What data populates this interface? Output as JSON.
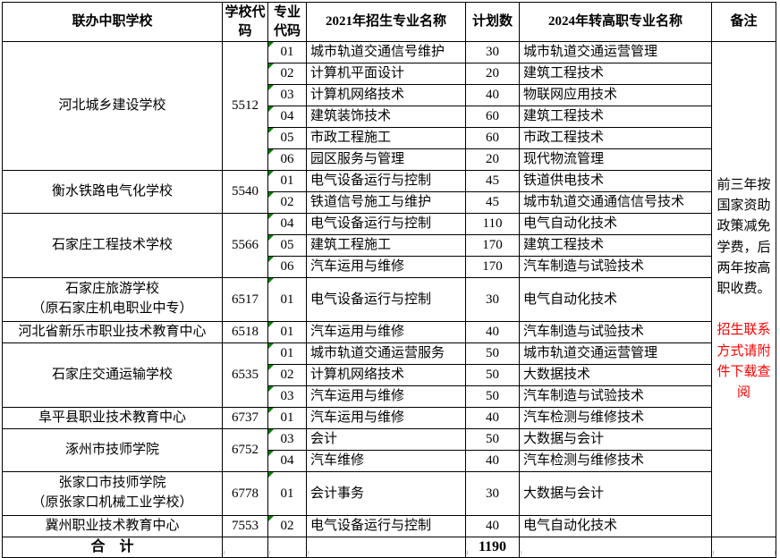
{
  "header": {
    "school": "联办中职学校",
    "school_code": "学校代码",
    "major_code": "专业代码",
    "major_2021": "2021年招生专业名称",
    "plan": "计划数",
    "major_2024": "2024年转高职专业名称",
    "remark": "备注"
  },
  "schools": [
    {
      "name": "河北城乡建设学校",
      "code": "5512",
      "majors": [
        {
          "code": "01",
          "major2021": "城市轨道交通信号维护",
          "plan": "30",
          "major2024": "城市轨道交通运营管理"
        },
        {
          "code": "02",
          "major2021": "计算机平面设计",
          "plan": "20",
          "major2024": "建筑工程技术"
        },
        {
          "code": "03",
          "major2021": "计算机网络技术",
          "plan": "40",
          "major2024": "物联网应用技术"
        },
        {
          "code": "04",
          "major2021": "建筑装饰技术",
          "plan": "60",
          "major2024": "建筑工程技术"
        },
        {
          "code": "05",
          "major2021": "市政工程施工",
          "plan": "60",
          "major2024": "市政工程技术"
        },
        {
          "code": "06",
          "major2021": "园区服务与管理",
          "plan": "20",
          "major2024": "现代物流管理"
        }
      ]
    },
    {
      "name": "衡水铁路电气化学校",
      "code": "5540",
      "majors": [
        {
          "code": "01",
          "major2021": "电气设备运行与控制",
          "plan": "45",
          "major2024": "铁道供电技术"
        },
        {
          "code": "02",
          "major2021": "铁道信号施工与维护",
          "plan": "45",
          "major2024": "城市轨道交通通信信号技术"
        }
      ]
    },
    {
      "name": "石家庄工程技术学校",
      "code": "5566",
      "majors": [
        {
          "code": "04",
          "major2021": "电气设备运行与控制",
          "plan": "110",
          "major2024": "电气自动化技术"
        },
        {
          "code": "05",
          "major2021": "建筑工程施工",
          "plan": "170",
          "major2024": "建筑工程技术"
        },
        {
          "code": "06",
          "major2021": "汽车运用与维修",
          "plan": "170",
          "major2024": "汽车制造与试验技术"
        }
      ]
    },
    {
      "name": "石家庄旅游学校",
      "name2": "（原石家庄机电职业中专）",
      "tall": true,
      "code": "6517",
      "majors": [
        {
          "code": "01",
          "major2021": "电气设备运行与控制",
          "plan": "30",
          "major2024": "电气自动化技术"
        }
      ]
    },
    {
      "name": "河北省新乐市职业技术教育中心",
      "code": "6518",
      "majors": [
        {
          "code": "01",
          "major2021": "汽车运用与维修",
          "plan": "40",
          "major2024": "汽车制造与试验技术"
        }
      ]
    },
    {
      "name": "石家庄交通运输学校",
      "code": "6535",
      "majors": [
        {
          "code": "01",
          "major2021": "城市轨道交通运营服务",
          "plan": "50",
          "major2024": "城市轨道交通运营管理"
        },
        {
          "code": "02",
          "major2021": "计算机网络技术",
          "plan": "50",
          "major2024": "大数据技术"
        },
        {
          "code": "03",
          "major2021": "汽车运用与维修",
          "plan": "50",
          "major2024": "汽车制造与试验技术"
        }
      ]
    },
    {
      "name": "阜平县职业技术教育中心",
      "code": "6737",
      "majors": [
        {
          "code": "01",
          "major2021": "汽车运用与维修",
          "plan": "40",
          "major2024": "汽车检测与维修技术"
        }
      ]
    },
    {
      "name": "涿州市技师学院",
      "code": "6752",
      "majors": [
        {
          "code": "03",
          "major2021": "会计",
          "plan": "50",
          "major2024": "大数据与会计"
        },
        {
          "code": "04",
          "major2021": "汽车维修",
          "plan": "40",
          "major2024": "汽车检测与维修技术"
        }
      ]
    },
    {
      "name": "张家口市技师学院",
      "name2": "（原张家口机械工业学校）",
      "tall": true,
      "code": "6778",
      "majors": [
        {
          "code": "01",
          "major2021": "会计事务",
          "plan": "30",
          "major2024": "大数据与会计"
        }
      ]
    },
    {
      "name": "冀州职业技术教育中心",
      "code": "7553",
      "majors": [
        {
          "code": "02",
          "major2021": "电气设备运行与控制",
          "plan": "40",
          "major2024": "电气自动化技术"
        }
      ]
    }
  ],
  "total": {
    "label": "合　计",
    "plan": "1190"
  },
  "remark": {
    "note": "前三年按国家资助政策减免学费，后两年按高职收费。",
    "highlight": "招生联系方式请附件下载查阅"
  },
  "icons": {
    "error_flag": "number-stored-as-text-flag"
  },
  "colors": {
    "remark_highlight": "#ff0000",
    "flag_green": "#008000",
    "border": "#000000",
    "background": "#ffffff"
  }
}
